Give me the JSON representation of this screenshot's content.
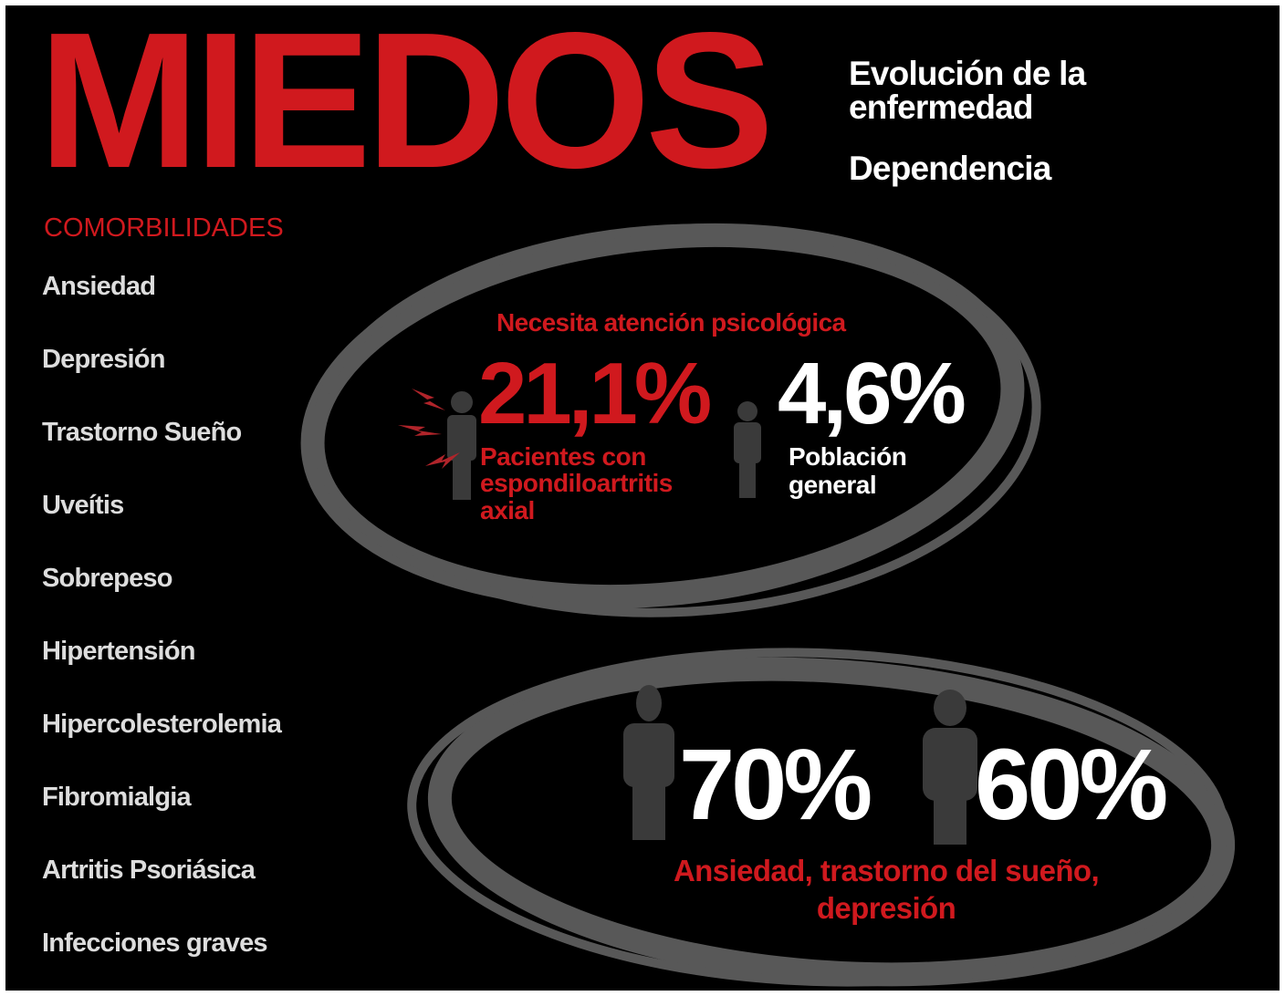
{
  "header": {
    "title": "MIEDOS",
    "topics": [
      "Evolución de la enfermedad",
      "Dependencia"
    ]
  },
  "comorbidities": {
    "heading": "COMORBILIDADES",
    "items": [
      "Ansiedad",
      "Depresión",
      "Trastorno Sueño",
      "Uveítis",
      "Sobrepeso",
      "Hipertensión",
      "Hipercolesterolemia",
      "Fibromialgia",
      "Artritis Psoriásica",
      "Infecciones graves"
    ]
  },
  "psychological_care": {
    "heading": "Necesita atención psicológica",
    "patients": {
      "value": "21,1%",
      "label": "Pacientes con espondiloartritis axial"
    },
    "general": {
      "value": "4,6%",
      "label": "Población general"
    }
  },
  "symptoms": {
    "values": [
      "70%",
      "60%"
    ],
    "label": "Ansiedad, trastorno del sueño, depresión"
  }
}
